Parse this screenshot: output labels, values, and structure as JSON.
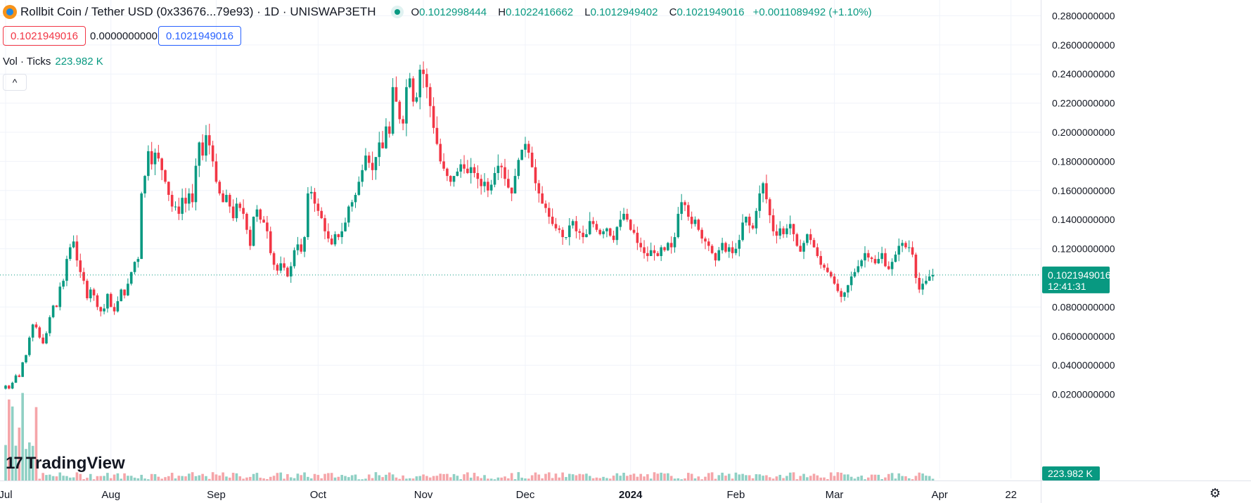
{
  "header": {
    "title": "Rollbit Coin / Tether USD (0x33676...79e93) · 1D · UNISWAP3ETH",
    "ohlc": [
      {
        "k": "O",
        "v": "0.1012998444"
      },
      {
        "k": "H",
        "v": "0.1022416662"
      },
      {
        "k": "L",
        "v": "0.1012949402"
      },
      {
        "k": "C",
        "v": "0.1021949016"
      }
    ],
    "change": "+0.0011089492 (+1.10%)"
  },
  "quote": {
    "sell": "0.1021949016",
    "spread": "0.0000000000",
    "buy": "0.1021949016"
  },
  "volume": {
    "label": "Vol · Ticks",
    "value": "223.982 K",
    "badge": "223.982 K"
  },
  "collapse_icon": "^",
  "brand": {
    "mark": "17",
    "text": "TradingView"
  },
  "settings_icon": "⚙",
  "last_price": {
    "value": "0.1021949016",
    "countdown": "12:41:31"
  },
  "colors": {
    "up": "#089981",
    "down": "#f23645",
    "up_vol": "#8fd0c4",
    "down_vol": "#f5a5a9",
    "grid": "#f0f3fa",
    "accent": "#2962ff"
  },
  "chart_data": {
    "type": "candlestick",
    "series_name": "Rollbit Coin / Tether USD",
    "interval": "1D",
    "y_ticks": [
      0.28,
      0.26,
      0.24,
      0.22,
      0.2,
      0.18,
      0.16,
      0.14,
      0.12,
      0.08,
      0.06,
      0.04,
      0.02
    ],
    "y_tick_labels": [
      "0.2800000000",
      "0.2600000000",
      "0.2400000000",
      "0.2200000000",
      "0.2000000000",
      "0.1800000000",
      "0.1600000000",
      "0.1400000000",
      "0.1200000000",
      "0.0800000000",
      "0.0600000000",
      "0.0400000000",
      "0.0200000000"
    ],
    "ylim": [
      0.0,
      0.286
    ],
    "x_labels": [
      {
        "label": "Jul",
        "index": 0
      },
      {
        "label": "Aug",
        "index": 31
      },
      {
        "label": "Sep",
        "index": 62
      },
      {
        "label": "Oct",
        "index": 92
      },
      {
        "label": "Nov",
        "index": 123
      },
      {
        "label": "Dec",
        "index": 153
      },
      {
        "label": "2024",
        "index": 184,
        "bold": true
      },
      {
        "label": "Feb",
        "index": 215
      },
      {
        "label": "Mar",
        "index": 244
      },
      {
        "label": "Apr",
        "index": 275
      },
      {
        "label": "22",
        "index": 296
      }
    ],
    "closes": [
      0.026,
      0.024,
      0.028,
      0.033,
      0.032,
      0.042,
      0.047,
      0.059,
      0.068,
      0.066,
      0.059,
      0.055,
      0.062,
      0.073,
      0.081,
      0.08,
      0.094,
      0.098,
      0.113,
      0.121,
      0.125,
      0.112,
      0.104,
      0.098,
      0.086,
      0.092,
      0.088,
      0.08,
      0.077,
      0.079,
      0.089,
      0.08,
      0.077,
      0.084,
      0.092,
      0.088,
      0.096,
      0.104,
      0.111,
      0.113,
      0.158,
      0.17,
      0.187,
      0.178,
      0.186,
      0.182,
      0.174,
      0.166,
      0.157,
      0.149,
      0.149,
      0.144,
      0.155,
      0.151,
      0.158,
      0.152,
      0.177,
      0.193,
      0.184,
      0.198,
      0.191,
      0.18,
      0.166,
      0.158,
      0.152,
      0.157,
      0.149,
      0.141,
      0.151,
      0.148,
      0.144,
      0.133,
      0.122,
      0.142,
      0.147,
      0.14,
      0.138,
      0.132,
      0.117,
      0.109,
      0.105,
      0.11,
      0.107,
      0.101,
      0.108,
      0.119,
      0.123,
      0.118,
      0.128,
      0.158,
      0.159,
      0.151,
      0.146,
      0.141,
      0.132,
      0.127,
      0.123,
      0.13,
      0.128,
      0.132,
      0.138,
      0.149,
      0.152,
      0.157,
      0.166,
      0.174,
      0.184,
      0.179,
      0.174,
      0.183,
      0.193,
      0.189,
      0.204,
      0.199,
      0.231,
      0.221,
      0.209,
      0.206,
      0.231,
      0.237,
      0.221,
      0.224,
      0.243,
      0.24,
      0.231,
      0.218,
      0.203,
      0.192,
      0.18,
      0.175,
      0.17,
      0.166,
      0.17,
      0.173,
      0.178,
      0.175,
      0.172,
      0.176,
      0.172,
      0.168,
      0.163,
      0.166,
      0.16,
      0.164,
      0.172,
      0.177,
      0.176,
      0.168,
      0.162,
      0.158,
      0.17,
      0.181,
      0.188,
      0.192,
      0.186,
      0.176,
      0.165,
      0.158,
      0.151,
      0.148,
      0.142,
      0.137,
      0.134,
      0.133,
      0.128,
      0.128,
      0.136,
      0.139,
      0.132,
      0.131,
      0.128,
      0.13,
      0.139,
      0.137,
      0.133,
      0.13,
      0.132,
      0.134,
      0.129,
      0.126,
      0.135,
      0.14,
      0.144,
      0.14,
      0.133,
      0.131,
      0.124,
      0.121,
      0.117,
      0.115,
      0.119,
      0.117,
      0.115,
      0.121,
      0.119,
      0.124,
      0.121,
      0.128,
      0.144,
      0.152,
      0.15,
      0.142,
      0.137,
      0.14,
      0.133,
      0.127,
      0.125,
      0.122,
      0.117,
      0.112,
      0.119,
      0.124,
      0.118,
      0.121,
      0.117,
      0.12,
      0.126,
      0.138,
      0.142,
      0.136,
      0.134,
      0.146,
      0.158,
      0.165,
      0.154,
      0.143,
      0.132,
      0.129,
      0.134,
      0.13,
      0.134,
      0.137,
      0.13,
      0.122,
      0.118,
      0.124,
      0.13,
      0.126,
      0.121,
      0.115,
      0.109,
      0.107,
      0.104,
      0.101,
      0.096,
      0.091,
      0.087,
      0.09,
      0.095,
      0.101,
      0.104,
      0.108,
      0.112,
      0.117,
      0.114,
      0.113,
      0.11,
      0.113,
      0.117,
      0.108,
      0.106,
      0.111,
      0.116,
      0.122,
      0.124,
      0.121,
      0.121,
      0.116,
      0.1,
      0.092,
      0.096,
      0.098,
      0.101,
      0.102
    ],
    "volume_max": 223982
  }
}
